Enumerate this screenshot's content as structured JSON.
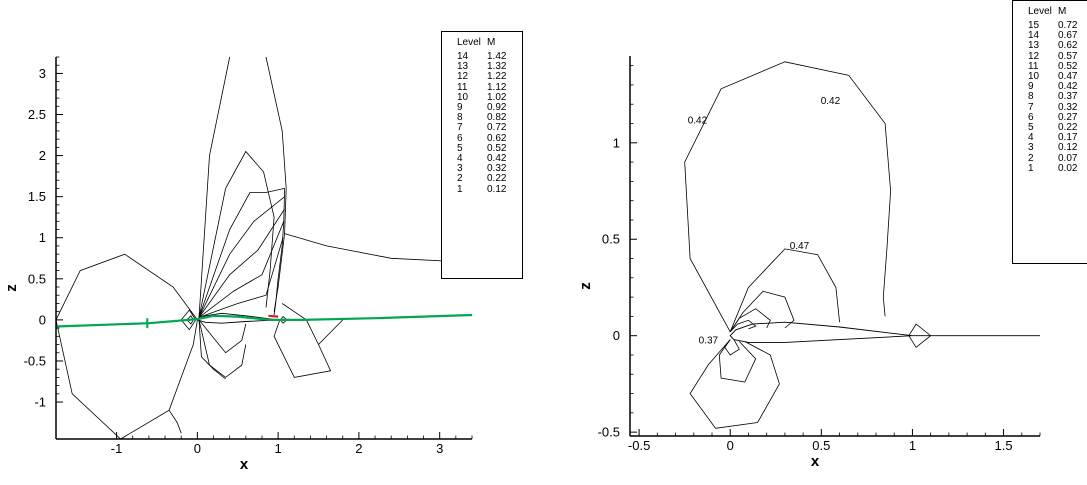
{
  "charts": [
    {
      "legend": {
        "header_level": "Level",
        "header_value": "M",
        "rows": [
          {
            "level": "14",
            "value": "1.42"
          },
          {
            "level": "13",
            "value": "1.32"
          },
          {
            "level": "12",
            "value": "1.22"
          },
          {
            "level": "11",
            "value": "1.12"
          },
          {
            "level": "10",
            "value": "1.02"
          },
          {
            "level": "9",
            "value": "0.92"
          },
          {
            "level": "8",
            "value": "0.82"
          },
          {
            "level": "7",
            "value": "0.72"
          },
          {
            "level": "6",
            "value": "0.62"
          },
          {
            "level": "5",
            "value": "0.52"
          },
          {
            "level": "4",
            "value": "0.42"
          },
          {
            "level": "3",
            "value": "0.32"
          },
          {
            "level": "2",
            "value": "0.22"
          },
          {
            "level": "1",
            "value": "0.12"
          }
        ]
      }
    },
    {
      "legend": {
        "header_level": "Level",
        "header_value": "M",
        "rows": [
          {
            "level": "15",
            "value": "0.72"
          },
          {
            "level": "14",
            "value": "0.67"
          },
          {
            "level": "13",
            "value": "0.62"
          },
          {
            "level": "12",
            "value": "0.57"
          },
          {
            "level": "11",
            "value": "0.52"
          },
          {
            "level": "10",
            "value": "0.47"
          },
          {
            "level": "9",
            "value": "0.42"
          },
          {
            "level": "8",
            "value": "0.37"
          },
          {
            "level": "7",
            "value": "0.32"
          },
          {
            "level": "6",
            "value": "0.27"
          },
          {
            "level": "5",
            "value": "0.22"
          },
          {
            "level": "4",
            "value": "0.17"
          },
          {
            "level": "3",
            "value": "0.12"
          },
          {
            "level": "2",
            "value": "0.07"
          },
          {
            "level": "1",
            "value": "0.02"
          }
        ]
      }
    }
  ],
  "chart_data": [
    {
      "type": "contour",
      "title": "",
      "xlabel": "x",
      "ylabel": "z",
      "xlim": [
        -1.75,
        3.4
      ],
      "ylim": [
        -1.45,
        3.2
      ],
      "xticks": [
        -1,
        0,
        1,
        2,
        3
      ],
      "xtick_labels": [
        "-1",
        "0",
        "1",
        "2",
        "3"
      ],
      "yticks": [
        -1,
        -0.5,
        0,
        0.5,
        1,
        1.5,
        2,
        2.5,
        3
      ],
      "ytick_labels": [
        "-1",
        "-0.5",
        "0",
        "0.5",
        "1",
        "1.5",
        "2",
        "2.5",
        "3"
      ],
      "grid": false,
      "legend_position": "top-right",
      "variable": "M",
      "levels": [
        1.42,
        1.32,
        1.22,
        1.12,
        1.02,
        0.92,
        0.82,
        0.72,
        0.62,
        0.52,
        0.42,
        0.32,
        0.22,
        0.12
      ],
      "colors": {
        "line": "#000000",
        "wake": "#00a650",
        "wake_mark": "#d62020"
      },
      "contours": [
        {
          "name": "big-left-loop",
          "points": [
            [
              0,
              0
            ],
            [
              -0.3,
              0.4
            ],
            [
              -0.9,
              0.8
            ],
            [
              -1.45,
              0.6
            ],
            [
              -1.75,
              0.0
            ],
            [
              -1.55,
              -0.9
            ],
            [
              -0.95,
              -1.45
            ],
            [
              -0.35,
              -1.1
            ],
            [
              -0.05,
              -0.3
            ],
            [
              0,
              0
            ]
          ]
        },
        {
          "name": "left-tail",
          "points": [
            [
              -0.35,
              -1.1
            ],
            [
              -0.25,
              -1.25
            ],
            [
              -0.2,
              -1.38
            ]
          ]
        },
        {
          "name": "lobe-outer",
          "points": [
            [
              0.02,
              0.03
            ],
            [
              0.15,
              2.0
            ],
            [
              0.4,
              3.2
            ]
          ]
        },
        {
          "name": "lobe-outer-right",
          "points": [
            [
              0.85,
              3.2
            ],
            [
              1.05,
              2.3
            ],
            [
              1.1,
              1.6
            ],
            [
              1.08,
              1.05
            ],
            [
              1.0,
              0.4
            ],
            [
              0.95,
              0.1
            ]
          ]
        },
        {
          "name": "lobe-2",
          "points": [
            [
              0.02,
              0.03
            ],
            [
              0.35,
              1.6
            ],
            [
              0.6,
              2.05
            ],
            [
              0.82,
              1.8
            ],
            [
              0.95,
              1.25
            ],
            [
              0.9,
              0.6
            ],
            [
              0.85,
              0.15
            ]
          ]
        },
        {
          "name": "lobe-3",
          "points": [
            [
              0.02,
              0.03
            ],
            [
              0.4,
              1.1
            ],
            [
              0.65,
              1.55
            ],
            [
              0.85,
              1.55
            ],
            [
              1.08,
              1.6
            ]
          ]
        },
        {
          "name": "lobe-4",
          "points": [
            [
              0.02,
              0.03
            ],
            [
              0.4,
              0.8
            ],
            [
              0.7,
              1.2
            ],
            [
              1.08,
              1.5
            ]
          ]
        },
        {
          "name": "lobe-5",
          "points": [
            [
              0.02,
              0.03
            ],
            [
              0.4,
              0.55
            ],
            [
              0.75,
              0.85
            ],
            [
              1.08,
              1.35
            ]
          ]
        },
        {
          "name": "lobe-6",
          "points": [
            [
              0.02,
              0.03
            ],
            [
              0.45,
              0.35
            ],
            [
              0.8,
              0.55
            ],
            [
              1.07,
              1.2
            ]
          ]
        },
        {
          "name": "lobe-7",
          "points": [
            [
              0.02,
              0.03
            ],
            [
              0.5,
              0.2
            ],
            [
              0.85,
              0.3
            ],
            [
              1.06,
              1.0
            ]
          ]
        },
        {
          "name": "shock",
          "points": [
            [
              1.08,
              1.6
            ],
            [
              1.07,
              1.2
            ],
            [
              1.05,
              0.9
            ],
            [
              1.0,
              0.5
            ],
            [
              0.97,
              0.2
            ],
            [
              0.95,
              0.06
            ]
          ]
        },
        {
          "name": "trailing-far",
          "points": [
            [
              1.08,
              1.05
            ],
            [
              1.6,
              0.9
            ],
            [
              2.4,
              0.75
            ],
            [
              3.4,
              0.7
            ]
          ]
        },
        {
          "name": "rear-lobe",
          "points": [
            [
              1.05,
              0.2
            ],
            [
              1.2,
              0.1
            ],
            [
              1.35,
              0.0
            ],
            [
              1.5,
              -0.3
            ],
            [
              1.65,
              -0.62
            ],
            [
              1.2,
              -0.7
            ],
            [
              0.95,
              -0.2
            ],
            [
              1.02,
              0.0
            ]
          ]
        },
        {
          "name": "rear-lobe-tail",
          "points": [
            [
              1.5,
              -0.3
            ],
            [
              1.75,
              -0.05
            ],
            [
              1.8,
              0.0
            ]
          ]
        },
        {
          "name": "below-1",
          "points": [
            [
              0.02,
              0.0
            ],
            [
              0.35,
              -0.4
            ],
            [
              0.55,
              -0.25
            ],
            [
              0.6,
              -0.05
            ]
          ]
        },
        {
          "name": "below-2",
          "points": [
            [
              0.02,
              0.0
            ],
            [
              0.15,
              -0.55
            ],
            [
              0.35,
              -0.7
            ],
            [
              0.55,
              -0.55
            ],
            [
              0.6,
              -0.3
            ]
          ]
        },
        {
          "name": "below-3",
          "points": [
            [
              0.02,
              0.0
            ],
            [
              0.05,
              -0.45
            ],
            [
              0.2,
              -0.6
            ],
            [
              0.35,
              -0.72
            ]
          ]
        },
        {
          "name": "le-circle",
          "points": [
            [
              -0.05,
              0.0
            ],
            [
              -0.08,
              0.05
            ],
            [
              -0.13,
              0.0
            ],
            [
              -0.08,
              -0.05
            ],
            [
              -0.05,
              0.0
            ]
          ]
        },
        {
          "name": "le-circle-2",
          "points": [
            [
              -0.02,
              0.0
            ],
            [
              -0.1,
              0.12
            ],
            [
              -0.2,
              0.0
            ],
            [
              -0.1,
              -0.12
            ],
            [
              -0.02,
              0.0
            ]
          ]
        },
        {
          "name": "te-circle",
          "points": [
            [
              1.03,
              0.0
            ],
            [
              1.06,
              0.04
            ],
            [
              1.11,
              0.0
            ],
            [
              1.06,
              -0.04
            ],
            [
              1.03,
              0.0
            ]
          ]
        }
      ],
      "wake": [
        [
          -1.75,
          -0.08
        ],
        [
          -0.6,
          -0.04
        ],
        [
          0.0,
          0.01
        ],
        [
          0.2,
          0.05
        ],
        [
          0.5,
          0.04
        ],
        [
          0.9,
          0.0
        ],
        [
          1.3,
          0.0
        ],
        [
          2.2,
          0.02
        ],
        [
          3.4,
          0.06
        ]
      ],
      "wake_marks": [
        {
          "x": -0.62,
          "z": -0.04
        }
      ],
      "shock_mark": [
        [
          0.88,
          0.05
        ],
        [
          1.0,
          0.04
        ]
      ],
      "airfoil": [
        [
          0,
          0
        ],
        [
          0.1,
          0.05
        ],
        [
          0.3,
          0.08
        ],
        [
          0.6,
          0.05
        ],
        [
          1.0,
          0.0
        ],
        [
          0.6,
          -0.02
        ],
        [
          0.3,
          -0.04
        ],
        [
          0.1,
          -0.03
        ],
        [
          0,
          0
        ]
      ]
    },
    {
      "type": "contour",
      "title": "",
      "xlabel": "x",
      "ylabel": "z",
      "xlim": [
        -0.55,
        1.7
      ],
      "ylim": [
        -0.52,
        1.45
      ],
      "xticks": [
        -0.5,
        0,
        0.5,
        1,
        1.5
      ],
      "xtick_labels": [
        "-0.5",
        "0",
        "0.5",
        "1",
        "1.5"
      ],
      "yticks": [
        -0.5,
        0,
        0.5,
        1
      ],
      "ytick_labels": [
        "-0.5",
        "0",
        "0.5",
        "1"
      ],
      "grid": false,
      "legend_position": "top-right",
      "variable": "M",
      "levels": [
        0.72,
        0.67,
        0.62,
        0.57,
        0.52,
        0.47,
        0.42,
        0.37,
        0.32,
        0.27,
        0.22,
        0.17,
        0.12,
        0.07,
        0.02
      ],
      "colors": {
        "line": "#000000"
      },
      "contour_labels": [
        {
          "text": "0.42",
          "x": 0.55,
          "z": 1.2
        },
        {
          "text": "0.42",
          "x": -0.18,
          "z": 1.1
        },
        {
          "text": "0.47",
          "x": 0.38,
          "z": 0.45
        },
        {
          "text": "0.37",
          "x": -0.12,
          "z": -0.04
        }
      ],
      "contours": [
        {
          "name": "c042",
          "points": [
            [
              0.0,
              0.02
            ],
            [
              -0.22,
              0.4
            ],
            [
              -0.25,
              0.9
            ],
            [
              -0.05,
              1.28
            ],
            [
              0.3,
              1.42
            ],
            [
              0.65,
              1.35
            ],
            [
              0.85,
              1.1
            ],
            [
              0.88,
              0.75
            ],
            [
              0.86,
              0.45
            ],
            [
              0.84,
              0.2
            ],
            [
              0.85,
              0.1
            ]
          ]
        },
        {
          "name": "c047",
          "points": [
            [
              0.0,
              0.02
            ],
            [
              0.1,
              0.25
            ],
            [
              0.3,
              0.45
            ],
            [
              0.48,
              0.42
            ],
            [
              0.58,
              0.25
            ],
            [
              0.6,
              0.07
            ]
          ]
        },
        {
          "name": "c052",
          "points": [
            [
              0.0,
              0.02
            ],
            [
              0.07,
              0.12
            ],
            [
              0.18,
              0.23
            ],
            [
              0.3,
              0.2
            ],
            [
              0.35,
              0.08
            ],
            [
              0.3,
              0.04
            ]
          ]
        },
        {
          "name": "c057",
          "points": [
            [
              0.0,
              0.02
            ],
            [
              0.05,
              0.09
            ],
            [
              0.14,
              0.14
            ],
            [
              0.22,
              0.08
            ],
            [
              0.2,
              0.04
            ]
          ]
        },
        {
          "name": "c062",
          "points": [
            [
              0.0,
              0.02
            ],
            [
              0.04,
              0.06
            ],
            [
              0.1,
              0.08
            ],
            [
              0.14,
              0.05
            ],
            [
              0.1,
              0.035
            ]
          ]
        },
        {
          "name": "c037",
          "points": [
            [
              0.0,
              -0.02
            ],
            [
              -0.12,
              -0.15
            ],
            [
              -0.22,
              -0.3
            ],
            [
              -0.08,
              -0.48
            ],
            [
              0.15,
              -0.45
            ],
            [
              0.27,
              -0.25
            ],
            [
              0.22,
              -0.1
            ],
            [
              0.08,
              -0.03
            ]
          ]
        },
        {
          "name": "c032",
          "points": [
            [
              0.0,
              -0.02
            ],
            [
              -0.06,
              -0.1
            ],
            [
              -0.05,
              -0.22
            ],
            [
              0.08,
              -0.24
            ],
            [
              0.14,
              -0.12
            ],
            [
              0.05,
              -0.03
            ]
          ]
        },
        {
          "name": "c027",
          "points": [
            [
              0.0,
              -0.02
            ],
            [
              -0.03,
              -0.06
            ],
            [
              0.0,
              -0.1
            ],
            [
              0.05,
              -0.07
            ],
            [
              0.02,
              -0.02
            ]
          ]
        },
        {
          "name": "te-circle",
          "points": [
            [
              0.98,
              0.0
            ],
            [
              1.02,
              0.06
            ],
            [
              1.1,
              0.0
            ],
            [
              1.02,
              -0.06
            ],
            [
              0.98,
              0.0
            ]
          ]
        }
      ],
      "wake": [
        [
          1.0,
          0.0
        ],
        [
          1.7,
          0.0
        ]
      ],
      "airfoil": [
        [
          0,
          0
        ],
        [
          0.03,
          0.03
        ],
        [
          0.12,
          0.06
        ],
        [
          0.3,
          0.07
        ],
        [
          0.6,
          0.045
        ],
        [
          1.0,
          0.0
        ],
        [
          0.6,
          -0.02
        ],
        [
          0.3,
          -0.035
        ],
        [
          0.1,
          -0.035
        ],
        [
          0.02,
          -0.02
        ],
        [
          0,
          0
        ]
      ]
    }
  ]
}
